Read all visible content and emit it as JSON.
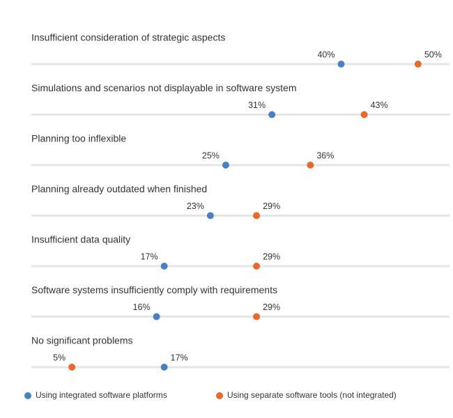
{
  "chart_data": {
    "type": "dot",
    "categories": [
      "Insufficient consideration of strategic aspects",
      "Simulations and scenarios not displayable in software system",
      "Planning too inflexible",
      "Planning already outdated when finished",
      "Insufficient data quality",
      "Software systems insufficiently comply with requirements",
      "No significant problems"
    ],
    "series": [
      {
        "name": "Using integrated software platforms",
        "color": "#4a7fc1",
        "values": [
          40,
          31,
          25,
          23,
          17,
          16,
          17
        ],
        "value_labels": [
          "40%",
          "31%",
          "25%",
          "23%",
          "17%",
          "16%",
          "17%"
        ]
      },
      {
        "name": "Using separate software tools (not integrated)",
        "color": "#e8692a",
        "values": [
          50,
          43,
          36,
          29,
          29,
          29,
          5
        ],
        "value_labels": [
          "50%",
          "43%",
          "36%",
          "29%",
          "29%",
          "29%",
          "5%"
        ]
      }
    ],
    "xlim": [
      0,
      54
    ]
  }
}
